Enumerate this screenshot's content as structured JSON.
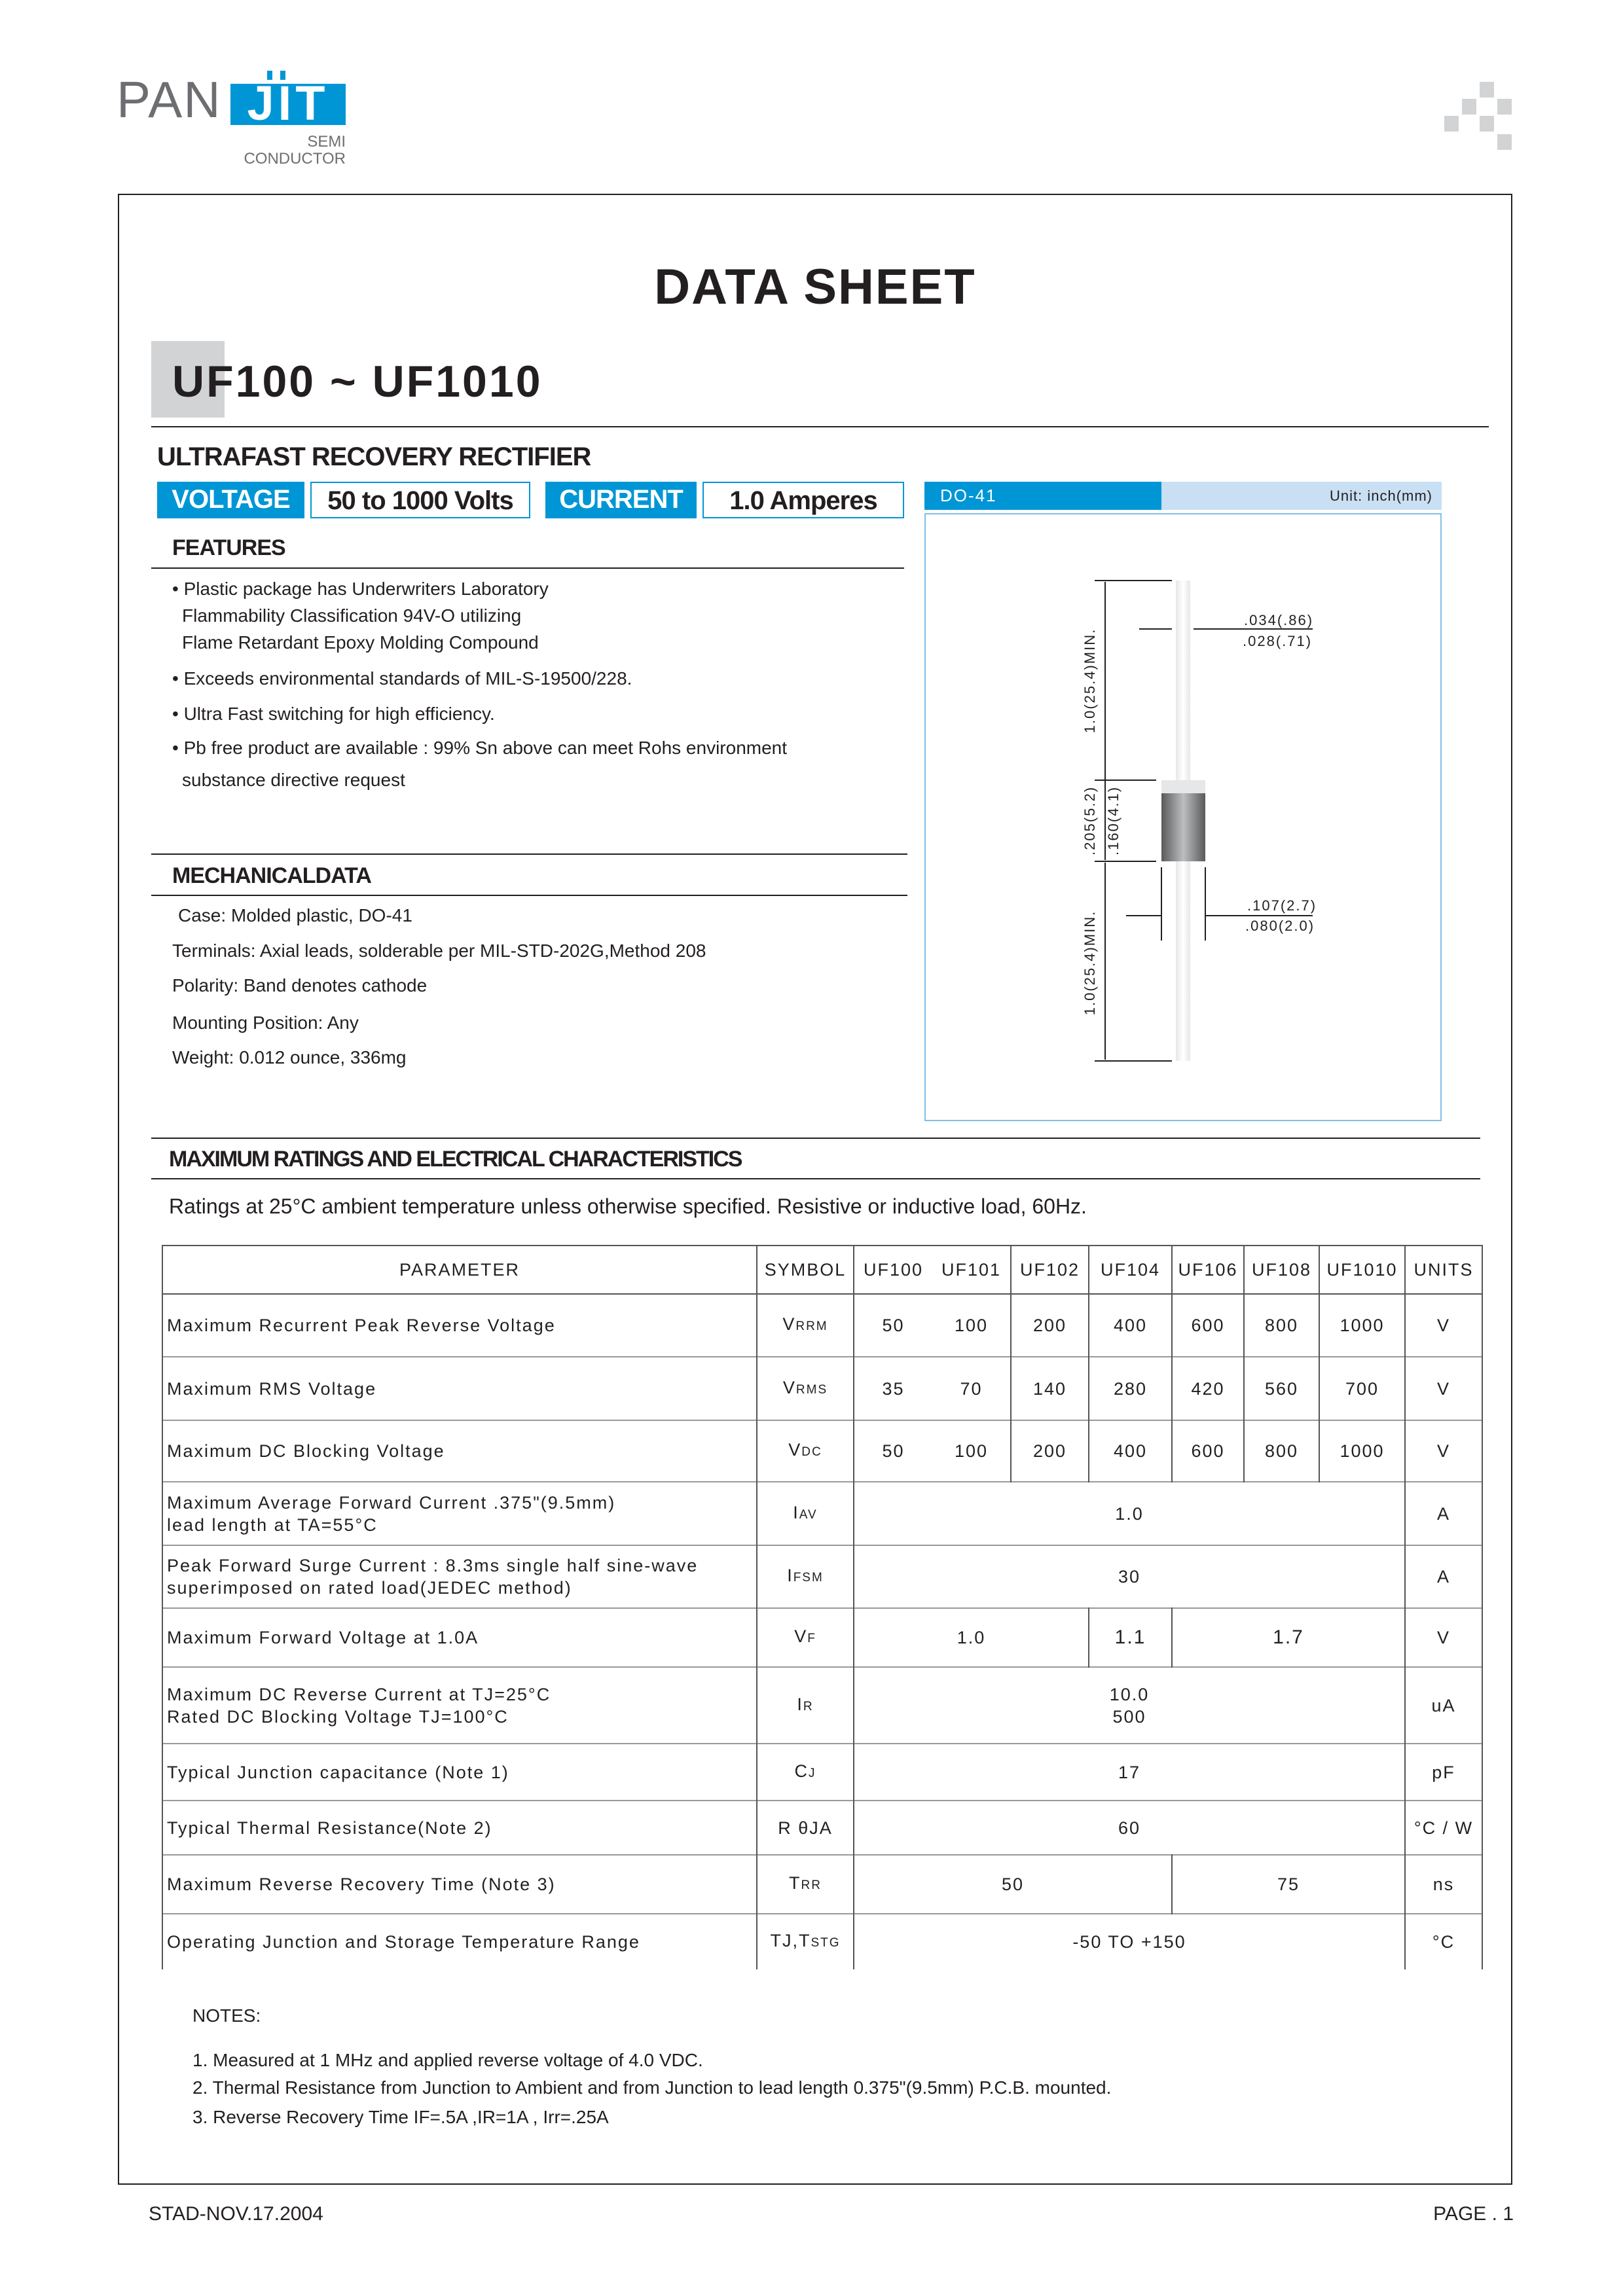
{
  "logo": {
    "brand_left": "PAN",
    "brand_right": "JIT",
    "sub1": "SEMI",
    "sub2": "CONDUCTOR",
    "accent_color": "#0096d6"
  },
  "header": {
    "title": "DATA  SHEET",
    "part_range": "UF100 ~ UF1010",
    "subtitle": "ULTRAFAST RECOVERY RECTIFIER"
  },
  "tags": {
    "voltage_label": "VOLTAGE",
    "voltage_value": "50 to 1000 Volts",
    "current_label": "CURRENT",
    "current_value": "1.0 Amperes"
  },
  "package": {
    "name": "DO-41",
    "unit": "Unit: inch(mm)",
    "dims": {
      "lead_len_top": "1.0(25.4)MIN.",
      "lead_len_bottom": "1.0(25.4)MIN.",
      "body_len_max": ".205(5.2)",
      "body_len_min": ".160(4.1)",
      "lead_dia_max": ".034(.86)",
      "lead_dia_min": ".028(.71)",
      "body_dia_max": ".107(2.7)",
      "body_dia_min": ".080(2.0)"
    }
  },
  "features": {
    "title": "FEATURES",
    "items": [
      [
        "• Plastic package has Underwriters Laboratory",
        "Flammability Classification 94V-O utilizing",
        "Flame Retardant Epoxy Molding Compound"
      ],
      [
        "• Exceeds environmental standards of MIL-S-19500/228."
      ],
      [
        "• Ultra Fast switching for high efficiency."
      ],
      [
        "• Pb free product are available : 99% Sn above can meet Rohs environment",
        "substance directive request"
      ]
    ]
  },
  "mechanical": {
    "title": "MECHANICALDATA",
    "items": [
      "Case: Molded plastic, DO-41",
      "Terminals: Axial leads, solderable per MIL-STD-202G,Method 208",
      "Polarity:  Band denotes cathode",
      "Mounting Position: Any",
      "Weight: 0.012 ounce, 336mg"
    ]
  },
  "ratings": {
    "title": "MAXIMUM RATINGS AND ELECTRICAL CHARACTERISTICS",
    "note": "Ratings at 25°C ambient temperature unless otherwise specified.  Resistive or inductive load, 60Hz.",
    "headers": [
      "PARAMETER",
      "SYMBOL",
      "UF100",
      "UF101",
      "UF102",
      "UF104",
      "UF106",
      "UF108",
      "UF1010",
      "UNITS"
    ],
    "rows": {
      "vrrm": {
        "param": "Maximum Recurrent Peak Reverse Voltage",
        "sym": "V",
        "sub": "RRM",
        "values": [
          "50",
          "100",
          "200",
          "400",
          "600",
          "800",
          "1000"
        ],
        "unit": "V"
      },
      "vrms": {
        "param": "Maximum RMS Voltage",
        "sym": "V",
        "sub": "RMS",
        "values": [
          "35",
          "70",
          "140",
          "280",
          "420",
          "560",
          "700"
        ],
        "unit": "V"
      },
      "vdc": {
        "param": "Maximum DC Blocking Voltage",
        "sym": "V",
        "sub": "DC",
        "values": [
          "50",
          "100",
          "200",
          "400",
          "600",
          "800",
          "1000"
        ],
        "unit": "V"
      },
      "iav": {
        "param1": "Maximum Average Forward  Current .375\"(9.5mm)",
        "param2": "lead length at TA=55°C",
        "sym": "I",
        "sub": "AV",
        "value": "1.0",
        "unit": "A"
      },
      "ifsm": {
        "param1": "Peak Forward Surge Current : 8.3ms single half sine-wave",
        "param2": "superimposed on rated load(JEDEC method)",
        "sym": "I",
        "sub": "FSM",
        "value": "30",
        "unit": "A"
      },
      "vf": {
        "param": "Maximum Forward Voltage at 1.0A",
        "sym": "V",
        "sub": "F",
        "v1": "1.0",
        "v2": "1.1",
        "v3": "1.7",
        "unit": "V"
      },
      "ir": {
        "param1": "Maximum DC Reverse Current at TJ=25°C",
        "param2": "Rated DC Blocking Voltage  TJ=100°C",
        "sym": "I",
        "sub": "R",
        "v1": "10.0",
        "v2": "500",
        "unit": "uA"
      },
      "cj": {
        "param": "Typical Junction capacitance (Note 1)",
        "sym": "C",
        "sub": "J",
        "value": "17",
        "unit": "pF"
      },
      "rth": {
        "param": "Typical Thermal Resistance(Note 2)",
        "sym": "R θJA",
        "value": "60",
        "unit": "°C / W"
      },
      "trr": {
        "param": "Maximum Reverse Recovery Time (Note 3)",
        "sym": "T",
        "sub": "RR",
        "v1": "50",
        "v2": "75",
        "unit": "ns"
      },
      "tj": {
        "param": "Operating Junction and Storage Temperature Range",
        "sym": "TJ,T",
        "sub": "STG",
        "value": "-50 TO +150",
        "unit": "°C"
      }
    }
  },
  "notes": {
    "title": "NOTES:",
    "items": [
      "1. Measured at 1 MHz and applied reverse voltage of 4.0 VDC.",
      "2. Thermal Resistance from Junction to Ambient and from Junction to lead length 0.375\"(9.5mm) P.C.B. mounted.",
      "3. Reverse Recovery Time IF=.5A ,IR=1A , Irr=.25A"
    ]
  },
  "footer": {
    "code": "STAD-NOV.17.2004",
    "page": "PAGE . 1"
  }
}
